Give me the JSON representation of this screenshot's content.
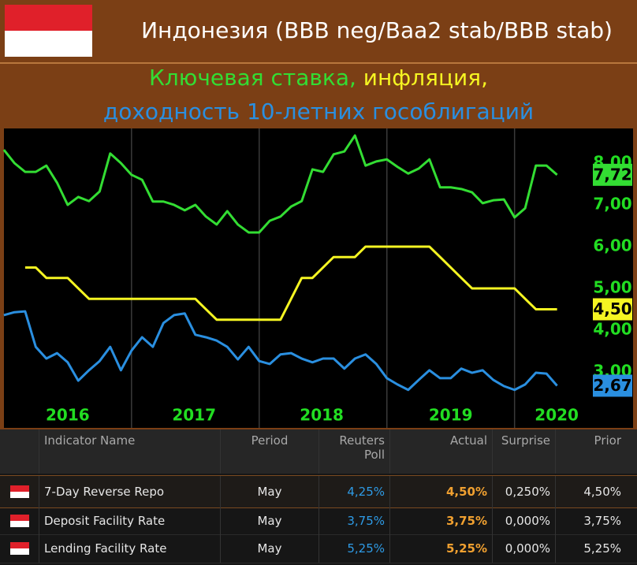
{
  "chart_data": {
    "type": "line",
    "title": "Индонезия (BBB neg/Baa2 stab/BBB stab)",
    "subtitle": [
      "Ключевая ставка,",
      "инфляция,",
      "доходность 10-летних гособлигаций"
    ],
    "x": [
      2016.0,
      2016.083,
      2016.167,
      2016.25,
      2016.333,
      2016.417,
      2016.5,
      2016.583,
      2016.667,
      2016.75,
      2016.833,
      2016.917,
      2017.0,
      2017.083,
      2017.167,
      2017.25,
      2017.333,
      2017.417,
      2017.5,
      2017.583,
      2017.667,
      2017.75,
      2017.833,
      2017.917,
      2018.0,
      2018.083,
      2018.167,
      2018.25,
      2018.333,
      2018.417,
      2018.5,
      2018.583,
      2018.667,
      2018.75,
      2018.833,
      2018.917,
      2019.0,
      2019.083,
      2019.167,
      2019.25,
      2019.333,
      2019.417,
      2019.5,
      2019.583,
      2019.667,
      2019.75,
      2019.833,
      2019.917,
      2020.0,
      2020.083,
      2020.167,
      2020.25,
      2020.333
    ],
    "series": [
      {
        "color": "#33dd33",
        "values": [
          8.32,
          8.0,
          7.79,
          7.79,
          7.94,
          7.53,
          7.0,
          7.19,
          7.09,
          7.32,
          8.23,
          8.0,
          7.72,
          7.6,
          7.08,
          7.08,
          7.0,
          6.87,
          7.0,
          6.72,
          6.53,
          6.85,
          6.53,
          6.34,
          6.34,
          6.62,
          6.72,
          6.96,
          7.09,
          7.85,
          7.79,
          8.21,
          8.28,
          8.66,
          7.94,
          8.04,
          8.09,
          7.91,
          7.75,
          7.87,
          8.09,
          7.42,
          7.42,
          7.38,
          7.3,
          7.04,
          7.11,
          7.13,
          6.7,
          6.92,
          7.94,
          7.94,
          7.72
        ],
        "value_labels": [
          null,
          null,
          null,
          null,
          null,
          null,
          null,
          null,
          null,
          null,
          null,
          null,
          null,
          null,
          null,
          null,
          null,
          null,
          null,
          null,
          null,
          null,
          null,
          null,
          null,
          null,
          null,
          null,
          null,
          null,
          null,
          null,
          null,
          null,
          null,
          null,
          null,
          null,
          null,
          null,
          null,
          null,
          null,
          null,
          null,
          null,
          null,
          null,
          null,
          null,
          null,
          null,
          "7,72"
        ]
      },
      {
        "color": "#f5f522",
        "values": [
          null,
          null,
          5.5,
          5.5,
          5.25,
          5.25,
          5.25,
          5.0,
          4.75,
          4.75,
          4.75,
          4.75,
          4.75,
          4.75,
          4.75,
          4.75,
          4.75,
          4.75,
          4.75,
          4.5,
          4.25,
          4.25,
          4.25,
          4.25,
          4.25,
          4.25,
          4.25,
          4.75,
          5.25,
          5.25,
          5.5,
          5.75,
          5.75,
          5.75,
          6.0,
          6.0,
          6.0,
          6.0,
          6.0,
          6.0,
          6.0,
          5.75,
          5.5,
          5.25,
          5.0,
          5.0,
          5.0,
          5.0,
          5.0,
          4.75,
          4.5,
          4.5,
          4.5
        ],
        "value_labels": [
          null,
          null,
          null,
          null,
          null,
          null,
          null,
          null,
          null,
          null,
          null,
          null,
          null,
          null,
          null,
          null,
          null,
          null,
          null,
          null,
          null,
          null,
          null,
          null,
          null,
          null,
          null,
          null,
          null,
          null,
          null,
          null,
          null,
          null,
          null,
          null,
          null,
          null,
          null,
          null,
          null,
          null,
          null,
          null,
          null,
          null,
          null,
          null,
          null,
          null,
          null,
          null,
          "4,50"
        ]
      },
      {
        "color": "#2a8fe0",
        "values": [
          4.36,
          4.43,
          4.45,
          3.6,
          3.32,
          3.45,
          3.23,
          2.79,
          3.04,
          3.26,
          3.6,
          3.04,
          3.51,
          3.83,
          3.6,
          4.17,
          4.36,
          4.4,
          3.89,
          3.83,
          3.75,
          3.6,
          3.3,
          3.6,
          3.26,
          3.19,
          3.42,
          3.45,
          3.32,
          3.23,
          3.32,
          3.32,
          3.08,
          3.32,
          3.42,
          3.19,
          2.85,
          2.7,
          2.57,
          2.81,
          3.04,
          2.85,
          2.85,
          3.08,
          2.98,
          3.04,
          2.81,
          2.66,
          2.57,
          2.7,
          2.98,
          2.96,
          2.67
        ],
        "value_labels": [
          null,
          null,
          null,
          null,
          null,
          null,
          null,
          null,
          null,
          null,
          null,
          null,
          null,
          null,
          null,
          null,
          null,
          null,
          null,
          null,
          null,
          null,
          null,
          null,
          null,
          null,
          null,
          null,
          null,
          null,
          null,
          null,
          null,
          null,
          null,
          null,
          null,
          null,
          null,
          null,
          null,
          null,
          null,
          null,
          null,
          null,
          null,
          null,
          null,
          null,
          null,
          null,
          "2,67"
        ]
      }
    ],
    "xlim": [
      2015.97,
      2020.57
    ],
    "xticks": [
      {
        "value": 2016.5,
        "label": "2016"
      },
      {
        "value": 2017.49,
        "label": "2017"
      },
      {
        "value": 2018.49,
        "label": "2018"
      },
      {
        "value": 2019.5,
        "label": "2019"
      },
      {
        "value": 2020.33,
        "label": "2020"
      }
    ],
    "xgrid": [
      2017,
      2018,
      2019,
      2020
    ],
    "ylim": [
      1.66,
      8.83
    ],
    "yticks": [
      {
        "value": 3,
        "label": "3,00"
      },
      {
        "value": 4,
        "label": "4,00"
      },
      {
        "value": 5,
        "label": "5,00"
      },
      {
        "value": 6,
        "label": "6,00"
      },
      {
        "value": 7,
        "label": "7,00"
      },
      {
        "value": 8,
        "label": "8,00"
      }
    ],
    "tick_color": "#22dd22"
  },
  "table": {
    "columns": [
      "Indicator Name",
      "Period",
      "Reuters Poll",
      "Actual",
      "Surprise",
      "Prior"
    ],
    "rows": [
      [
        "7-Day Reverse Repo",
        "May",
        "4,25%",
        "4,50%",
        "0,250%",
        "4,50%"
      ],
      [
        "Deposit Facility Rate",
        "May",
        "3,75%",
        "3,75%",
        "0,000%",
        "3,75%"
      ],
      [
        "Lending Facility Rate",
        "May",
        "5,25%",
        "5,25%",
        "0,000%",
        "5,25%"
      ]
    ]
  }
}
